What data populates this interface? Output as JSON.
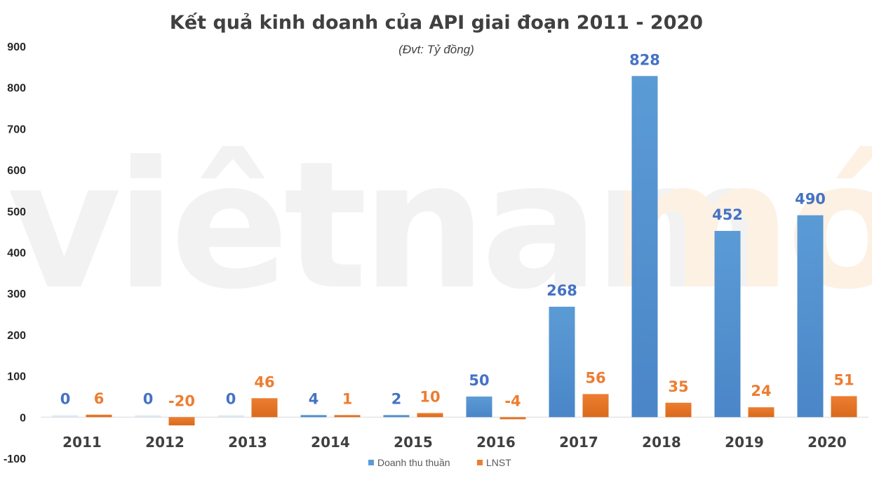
{
  "watermark": {
    "part1": "viêtnam",
    "part2": "mới",
    "color1": "#f2f2f2",
    "color2": "#fdf1e4"
  },
  "colors": {
    "revenue": "#5b9bd5",
    "revenue_dark": "#4a86c8",
    "profit": "#ed7d31",
    "profit_dark": "#d96a1c",
    "revenue_label": "#4472c4",
    "profit_label": "#ed7d31",
    "grid_zero": "#d9d9d9"
  },
  "chart_data": {
    "type": "bar",
    "title": "Kết quả kinh doanh của API giai đoạn 2011 - 2020",
    "subtitle": "(Đvt: Tỷ đồng)",
    "xlabel": "",
    "ylabel": "",
    "categories": [
      "2011",
      "2012",
      "2013",
      "2014",
      "2015",
      "2016",
      "2017",
      "2018",
      "2019",
      "2020"
    ],
    "ylim": [
      -100,
      900
    ],
    "yticks": [
      -100,
      0,
      100,
      200,
      300,
      400,
      500,
      600,
      700,
      800,
      900
    ],
    "grid": false,
    "legend_position": "bottom",
    "series": [
      {
        "name": "Doanh thu thuần",
        "values": [
          0,
          0,
          0,
          4,
          2,
          50,
          268,
          828,
          452,
          490
        ],
        "labels": [
          "0",
          "0",
          "0",
          "4",
          "2",
          "50",
          "268",
          "828",
          "452",
          "490"
        ]
      },
      {
        "name": "LNST",
        "values": [
          6,
          -20,
          46,
          1,
          10,
          -4,
          56,
          35,
          24,
          51
        ],
        "labels": [
          "6",
          "-20",
          "46",
          "1",
          "10",
          "-4",
          "56",
          "35",
          "24",
          "51"
        ]
      }
    ]
  }
}
